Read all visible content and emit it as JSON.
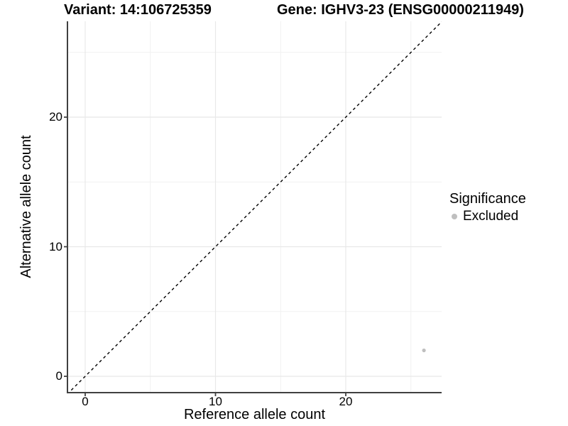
{
  "chart_data": {
    "type": "scatter",
    "title_left": "Variant: 14:106725359",
    "title_right": "Gene: IGHV3-23 (ENSG00000211949)",
    "xlabel": "Reference allele count",
    "ylabel": "Alternative allele count",
    "xlim": [
      -1.4,
      27.4
    ],
    "ylim": [
      -1.3,
      27.4
    ],
    "x_major_ticks": [
      0,
      10,
      20
    ],
    "y_major_ticks": [
      0,
      10,
      20
    ],
    "x_minor_gridlines": [
      5,
      15,
      25
    ],
    "y_minor_gridlines": [
      5,
      15,
      25
    ],
    "grid": "major+minor",
    "points": [
      {
        "x": 26,
        "y": 2,
        "significance": "Excluded"
      }
    ],
    "identity_line": {
      "slope": 1,
      "intercept": 0,
      "style": "dashed",
      "color": "#000000"
    },
    "legend": {
      "title": "Significance",
      "position": "right",
      "entries": [
        {
          "label": "Excluded",
          "color": "#bfbfbf"
        }
      ]
    },
    "colors": {
      "point": "#bfbfbf",
      "grid_major": "#e8e8e8",
      "grid_minor": "#f1f1f1",
      "axis": "#404040",
      "dashed_line": "#000000"
    }
  }
}
